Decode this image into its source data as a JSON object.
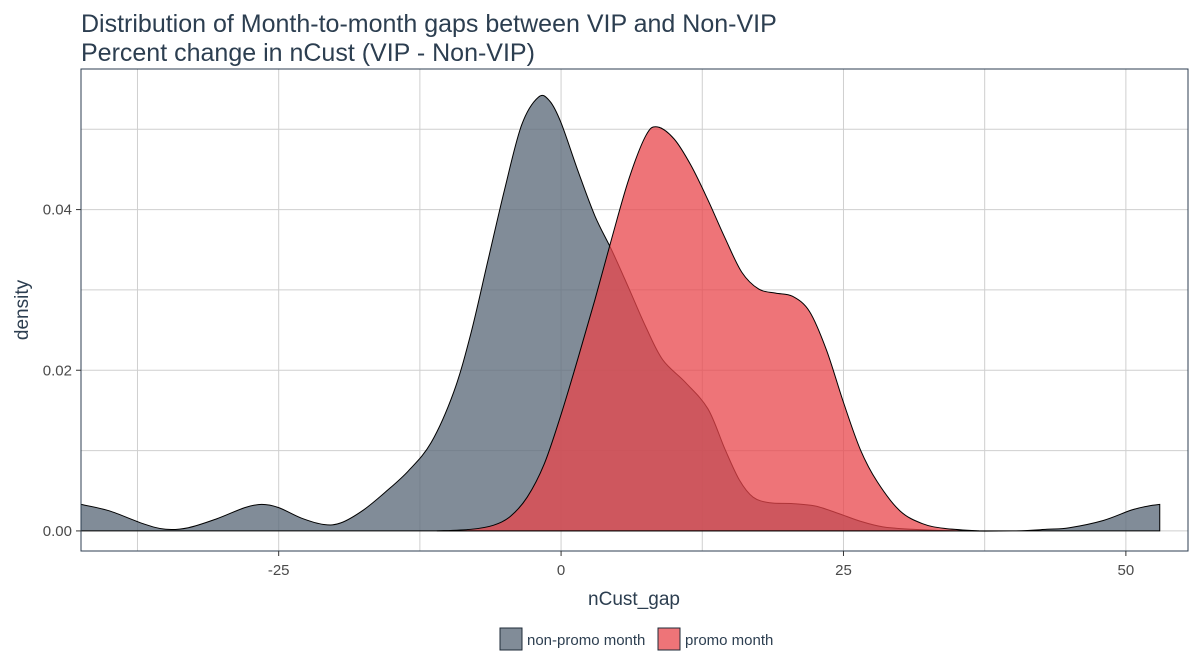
{
  "chart_data": {
    "type": "area",
    "title": "Distribution of Month-to-month gaps between VIP and Non-VIP",
    "subtitle": "Percent change in nCust (VIP - Non-VIP)",
    "xlabel": "nCust_gap",
    "ylabel": "density",
    "xlim": [
      -42.5,
      55.5
    ],
    "ylim": [
      -0.0025,
      0.0575
    ],
    "x_ticks": [
      -25,
      0,
      25,
      50
    ],
    "x_tick_labels": [
      "-25",
      "0",
      "25",
      "50"
    ],
    "y_ticks": [
      0.0,
      0.02,
      0.04
    ],
    "y_tick_labels": [
      "0.00",
      "0.02",
      "0.04"
    ],
    "grid": true,
    "legend_position": "bottom",
    "series": [
      {
        "name": "non-promo month",
        "color": "#5d6b7b",
        "opacity": 0.78,
        "points": [
          [
            -42.5,
            0.0033
          ],
          [
            -40,
            0.0025
          ],
          [
            -37,
            0.0009
          ],
          [
            -35,
            0.0002
          ],
          [
            -33,
            0.0004
          ],
          [
            -30.5,
            0.0015
          ],
          [
            -28,
            0.0029
          ],
          [
            -26.5,
            0.0033
          ],
          [
            -25,
            0.0029
          ],
          [
            -23,
            0.0016
          ],
          [
            -21,
            0.0008
          ],
          [
            -19.5,
            0.001
          ],
          [
            -17.5,
            0.0026
          ],
          [
            -15.5,
            0.0049
          ],
          [
            -13.5,
            0.0075
          ],
          [
            -11.5,
            0.011
          ],
          [
            -9.5,
            0.0173
          ],
          [
            -8,
            0.0245
          ],
          [
            -6.5,
            0.0335
          ],
          [
            -5,
            0.0425
          ],
          [
            -3.5,
            0.0505
          ],
          [
            -2,
            0.054
          ],
          [
            -1,
            0.0535
          ],
          [
            0,
            0.0508
          ],
          [
            1.5,
            0.0448
          ],
          [
            3,
            0.0392
          ],
          [
            4.5,
            0.0349
          ],
          [
            6,
            0.0302
          ],
          [
            7.5,
            0.0254
          ],
          [
            9,
            0.0213
          ],
          [
            11,
            0.0185
          ],
          [
            13,
            0.0152
          ],
          [
            14.5,
            0.0102
          ],
          [
            15.8,
            0.0063
          ],
          [
            17,
            0.0042
          ],
          [
            18.5,
            0.0035
          ],
          [
            20.5,
            0.0034
          ],
          [
            22.5,
            0.0031
          ],
          [
            24.5,
            0.0022
          ],
          [
            26.5,
            0.0012
          ],
          [
            28.5,
            0.0005
          ],
          [
            31,
            0.0002
          ],
          [
            35,
            0.0
          ],
          [
            40,
            0.0
          ],
          [
            43,
            0.0002
          ],
          [
            45,
            0.0004
          ],
          [
            48,
            0.0013
          ],
          [
            50.5,
            0.0026
          ],
          [
            52,
            0.0031
          ],
          [
            53,
            0.0033
          ]
        ]
      },
      {
        "name": "promo month",
        "color": "#e8454b",
        "opacity": 0.75,
        "points": [
          [
            -11,
            0.0
          ],
          [
            -8,
            0.0002
          ],
          [
            -6,
            0.0007
          ],
          [
            -4.5,
            0.0018
          ],
          [
            -3,
            0.0042
          ],
          [
            -1.5,
            0.0083
          ],
          [
            0,
            0.0145
          ],
          [
            1.5,
            0.0215
          ],
          [
            3,
            0.0288
          ],
          [
            4.5,
            0.0365
          ],
          [
            6,
            0.0438
          ],
          [
            7.5,
            0.0492
          ],
          [
            8.5,
            0.0503
          ],
          [
            10,
            0.0488
          ],
          [
            11.5,
            0.0455
          ],
          [
            13,
            0.0412
          ],
          [
            14.5,
            0.0365
          ],
          [
            16,
            0.0322
          ],
          [
            17.5,
            0.0301
          ],
          [
            19,
            0.0296
          ],
          [
            20.5,
            0.0292
          ],
          [
            22,
            0.0273
          ],
          [
            23.5,
            0.0225
          ],
          [
            25,
            0.016
          ],
          [
            26.5,
            0.0101
          ],
          [
            28,
            0.0061
          ],
          [
            30,
            0.0025
          ],
          [
            32,
            0.0009
          ],
          [
            34,
            0.0003
          ],
          [
            37,
            0.0
          ]
        ]
      }
    ]
  }
}
